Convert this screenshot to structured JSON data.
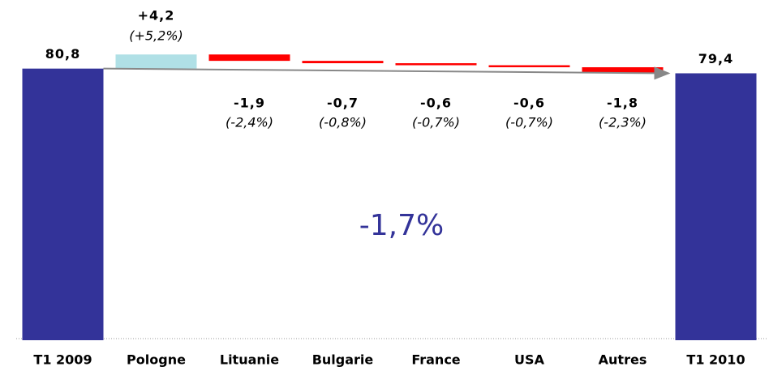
{
  "chart_data": {
    "type": "waterfall",
    "categories": [
      "T1 2009",
      "Pologne",
      "Lituanie",
      "Bulgarie",
      "France",
      "USA",
      "Autres",
      "T1 2010"
    ],
    "measure": [
      "absolute",
      "relative",
      "relative",
      "relative",
      "relative",
      "relative",
      "relative",
      "total"
    ],
    "values": [
      80.8,
      4.2,
      -1.9,
      -0.7,
      -0.6,
      -0.6,
      -1.8,
      79.4
    ],
    "value_labels": [
      "80,8",
      "+4,2",
      "-1,9",
      "-0,7",
      "-0,6",
      "-0,6",
      "-1,8",
      "79,4"
    ],
    "percent_labels": [
      null,
      "(+5,2%)",
      "(-2,4%)",
      "(-0,8%)",
      "(-0,7%)",
      "(-0,7%)",
      "(-2,3%)",
      null
    ],
    "colors": {
      "total": "#333399",
      "increase": "#b0e0e6",
      "decrease": "#ff0000"
    },
    "annotation": "-1,7%",
    "ylim": [
      0,
      100
    ]
  }
}
